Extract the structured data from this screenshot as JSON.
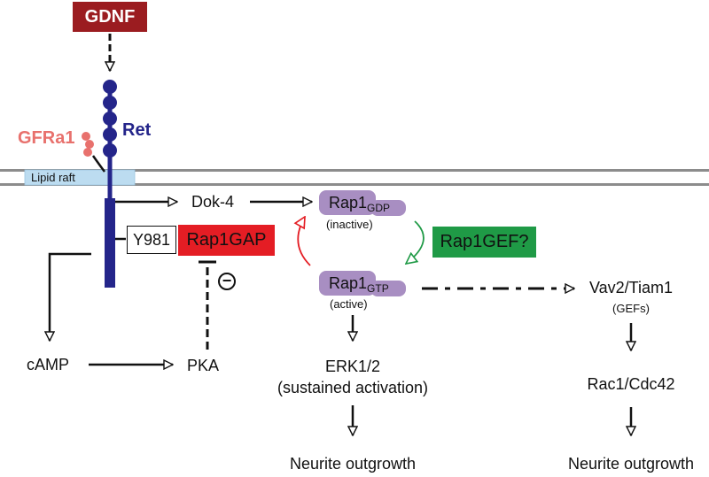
{
  "ligand": "GDNF",
  "receptor": "Ret",
  "coreceptor": "GFRa1",
  "membrane": "Lipid raft",
  "residue": "Y981",
  "gap": "Rap1GAP",
  "gef": "Rap1GEF?",
  "adaptor": "Dok-4",
  "inhibit_symbol": "−",
  "rap1_gdp": {
    "name": "Rap1",
    "sub": "GDP",
    "state": "(inactive)"
  },
  "rap1_gtp": {
    "name": "Rap1",
    "sub": "GTP",
    "state": "(active)"
  },
  "camp": "cAMP",
  "pka": "PKA",
  "erk": {
    "name": "ERK1/2",
    "note": "(sustained activation)"
  },
  "vav": {
    "name": "Vav2/Tiam1",
    "note": "(GEFs)"
  },
  "rac": "Rac1/Cdc42",
  "outcome_left": "Neurite outgrowth",
  "outcome_right": "Neurite outgrowth",
  "colors": {
    "gdnf": "#9b1c20",
    "ret": "#24258a",
    "gfra1": "#e8716d",
    "raft": "#bcdcf0",
    "gap": "#e41d24",
    "gef": "#1f9a46",
    "rap1": "#a88ec2",
    "membrane": "#8c8c8c"
  }
}
